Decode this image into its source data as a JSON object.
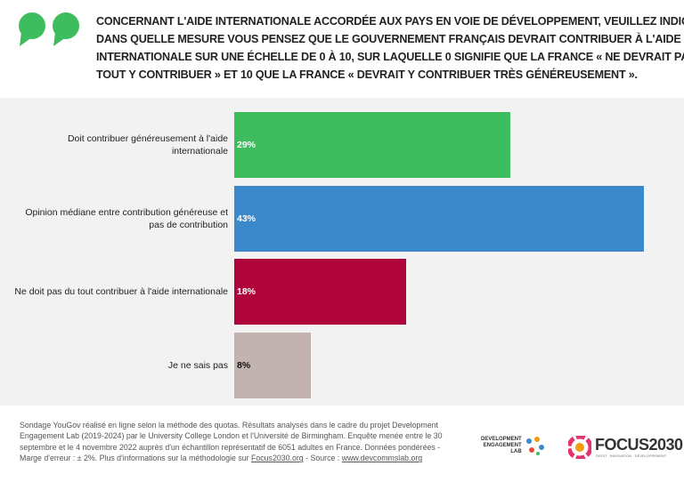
{
  "chart_data": {
    "type": "bar",
    "orientation": "horizontal",
    "title": [
      "Concernant l'aide internationale accordée aux pays en voie de développement, veuillez indiquer",
      "dans quelle mesure vous pensez que le gouvernement français devrait contribuer à l'aide",
      "internationale sur une échelle de 0 à 10, sur laquelle 0 signifie que la France « ne devrait pas du",
      "tout y contribuer » et 10  que la France « devrait y contribuer très généreusement »."
    ],
    "categories": [
      "Doit contribuer généreusement à l'aide internationale",
      "Opinion médiane entre contribution généreuse et pas de contribution",
      "Ne doit pas du tout contribuer à l'aide internationale",
      "Je ne sais pas"
    ],
    "values": [
      29,
      43,
      18,
      8
    ],
    "value_labels": [
      "29%",
      "43%",
      "18%",
      "8%"
    ],
    "colors": [
      "#3dbd5d",
      "#3b89ca",
      "#b0053b",
      "#c2b3b1"
    ]
  },
  "footer": {
    "lines": [
      "Sondage YouGov réalisé en ligne selon la méthode des quotas. Résultats analysés dans le cadre du projet Development",
      "Engagement Lab (2019-2024) par le University College London et l'Université de Birmingham. Enquête menée entre le 30",
      "septembre et le 4 novembre 2022 auprès d'un échantillon représentatif de 6051 adultes en France. Données pondérées -"
    ],
    "last": [
      "Marge d'erreur : ± 2%. Plus d'informations sur la méthodologie sur ",
      "Focus2030.org",
      " - Source : ",
      "www.devcommslab.org"
    ]
  },
  "logos": {
    "del": [
      "DEVELOPMENT",
      "ENGAGEMENT",
      "LAB"
    ],
    "focus": "FOCUS2030",
    "focus_tagline": "DROIT · INNOVATION · DÉVELOPPEMENT"
  }
}
